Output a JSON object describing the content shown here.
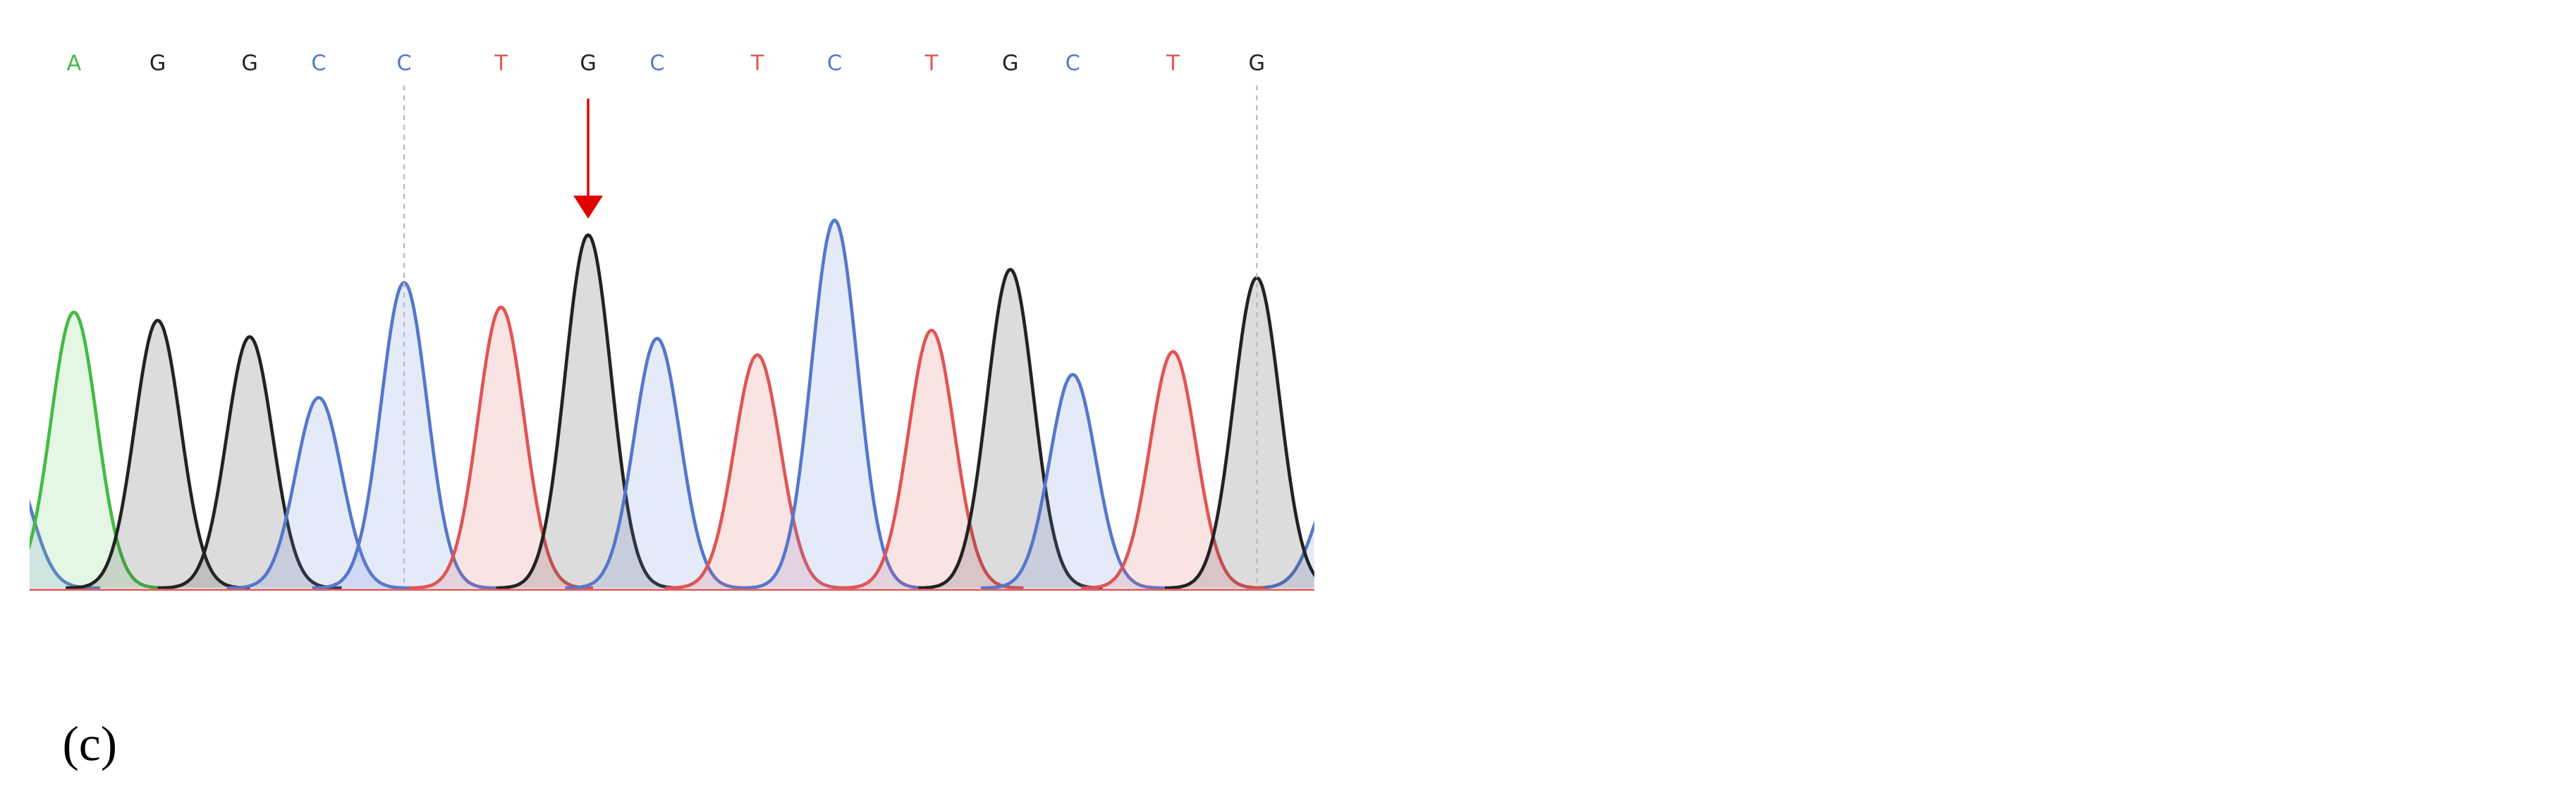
{
  "bases": [
    "A",
    "G",
    "G",
    "C",
    "C",
    "T",
    "G",
    "C",
    "T",
    "C",
    "T",
    "G",
    "C",
    "T",
    "G"
  ],
  "panel_label": "(c)"
}
